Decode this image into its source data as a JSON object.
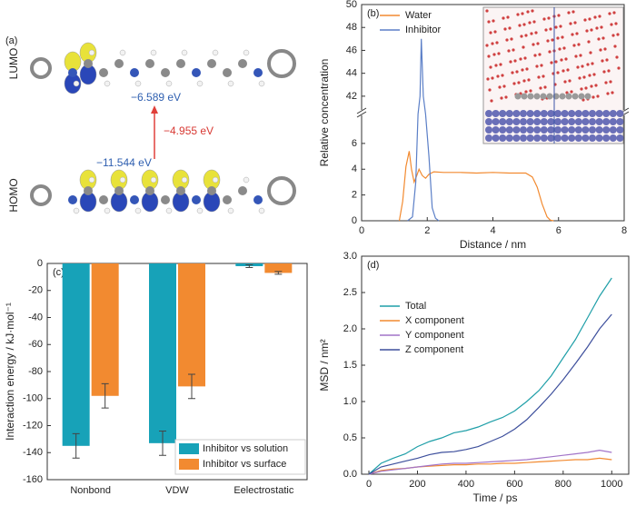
{
  "energy_diagram": {
    "panel_label": "(a)",
    "lumo_label": "LUMO",
    "homo_label": "HOMO",
    "lumo_energy": "−6.589 eV",
    "gap_energy": "−4.955 eV",
    "homo_energy": "−11.544 eV"
  },
  "chart_data": [
    {
      "type": "line",
      "panel_label": "(b)",
      "x_label": "Distance / nm",
      "y_label": "Relative concentration",
      "xlim": [
        0,
        8
      ],
      "xticks": [
        0,
        2,
        4,
        6,
        8
      ],
      "ylim": [
        0,
        50
      ],
      "ybreak": [
        8,
        41
      ],
      "yticks": [
        0,
        2,
        4,
        6,
        42,
        44,
        46,
        48,
        50
      ],
      "legend": "upper left",
      "series": [
        {
          "name": "Water",
          "color": "#f28a30",
          "x": [
            1.15,
            1.25,
            1.35,
            1.45,
            1.52,
            1.6,
            1.68,
            1.75,
            1.85,
            1.95,
            2.05,
            2.2,
            2.5,
            3,
            3.5,
            4,
            4.5,
            5,
            5.2,
            5.35,
            5.5,
            5.65,
            5.75,
            5.85
          ],
          "values": [
            0,
            1.5,
            4.2,
            5.4,
            4.0,
            3.0,
            3.5,
            4.0,
            3.5,
            3.3,
            3.6,
            3.8,
            3.75,
            3.75,
            3.7,
            3.75,
            3.7,
            3.7,
            3.4,
            2.6,
            1.3,
            0.3,
            0.05,
            0
          ]
        },
        {
          "name": "Inhibitor",
          "color": "#5b7fc7",
          "x": [
            1.4,
            1.55,
            1.65,
            1.72,
            1.78,
            1.82,
            1.88,
            1.95,
            2.05,
            2.15,
            2.25,
            2.35
          ],
          "values": [
            0,
            0.3,
            3,
            20,
            42,
            47,
            42,
            20,
            5,
            1,
            0.2,
            0
          ]
        }
      ]
    },
    {
      "type": "bar",
      "panel_label": "(c)",
      "y_label": "Interaction energy / kJ·mol⁻¹",
      "categories": [
        "Nonbond",
        "VDW",
        "Eelectrostatic"
      ],
      "ylim": [
        -160,
        0
      ],
      "yticks": [
        0,
        -20,
        -40,
        -60,
        -80,
        -100,
        -120,
        -140,
        -160
      ],
      "legend": "lower right",
      "series": [
        {
          "name": "Inhibitor vs solution",
          "color": "#17a2b8",
          "values": [
            -135,
            -133,
            -2
          ],
          "errors": [
            9,
            9,
            1
          ]
        },
        {
          "name": "Inhibitor vs surface",
          "color": "#f28a30",
          "values": [
            -98,
            -91,
            -7
          ],
          "errors": [
            9,
            9,
            1
          ]
        }
      ]
    },
    {
      "type": "line",
      "panel_label": "(d)",
      "x_label": "Time / ps",
      "y_label": "MSD / nm²",
      "xlim": [
        -30,
        1070
      ],
      "xticks": [
        0,
        200,
        400,
        600,
        800,
        1000
      ],
      "ylim": [
        0,
        3
      ],
      "yticks": [
        {
          "value": 0,
          "label": "0.0"
        },
        0.5,
        {
          "value": 1,
          "label": "1.0"
        },
        1.5,
        {
          "value": 2,
          "label": "2.0"
        },
        2.5,
        {
          "value": 3,
          "label": "3.0"
        }
      ],
      "legend": "upper left",
      "series": [
        {
          "name": "Total",
          "color": "#1f9fa8",
          "x": [
            0,
            50,
            100,
            150,
            200,
            250,
            300,
            350,
            400,
            450,
            500,
            550,
            600,
            650,
            700,
            750,
            800,
            850,
            900,
            950,
            1000
          ],
          "values": [
            0,
            0.15,
            0.22,
            0.28,
            0.38,
            0.45,
            0.5,
            0.57,
            0.6,
            0.65,
            0.72,
            0.78,
            0.87,
            1.0,
            1.15,
            1.35,
            1.6,
            1.85,
            2.15,
            2.45,
            2.7
          ]
        },
        {
          "name": "X component",
          "color": "#f28a30",
          "x": [
            0,
            50,
            100,
            150,
            200,
            250,
            300,
            350,
            400,
            450,
            500,
            550,
            600,
            650,
            700,
            750,
            800,
            850,
            900,
            950,
            1000
          ],
          "values": [
            0,
            0.05,
            0.07,
            0.08,
            0.1,
            0.11,
            0.12,
            0.13,
            0.13,
            0.14,
            0.14,
            0.15,
            0.15,
            0.16,
            0.17,
            0.18,
            0.19,
            0.2,
            0.2,
            0.22,
            0.2
          ]
        },
        {
          "name": "Y component",
          "color": "#a274c8",
          "x": [
            0,
            50,
            100,
            150,
            200,
            250,
            300,
            350,
            400,
            450,
            500,
            550,
            600,
            650,
            700,
            750,
            800,
            850,
            900,
            950,
            1000
          ],
          "values": [
            0,
            0.04,
            0.06,
            0.08,
            0.1,
            0.12,
            0.14,
            0.15,
            0.15,
            0.16,
            0.17,
            0.18,
            0.19,
            0.2,
            0.22,
            0.24,
            0.26,
            0.28,
            0.3,
            0.33,
            0.3
          ]
        },
        {
          "name": "Z component",
          "color": "#3d4f9c",
          "x": [
            0,
            50,
            100,
            150,
            200,
            250,
            300,
            350,
            400,
            450,
            500,
            550,
            600,
            650,
            700,
            750,
            800,
            850,
            900,
            950,
            1000
          ],
          "values": [
            0,
            0.1,
            0.14,
            0.18,
            0.22,
            0.27,
            0.3,
            0.31,
            0.34,
            0.38,
            0.45,
            0.52,
            0.62,
            0.75,
            0.92,
            1.1,
            1.3,
            1.52,
            1.75,
            2.0,
            2.2
          ]
        }
      ]
    }
  ]
}
